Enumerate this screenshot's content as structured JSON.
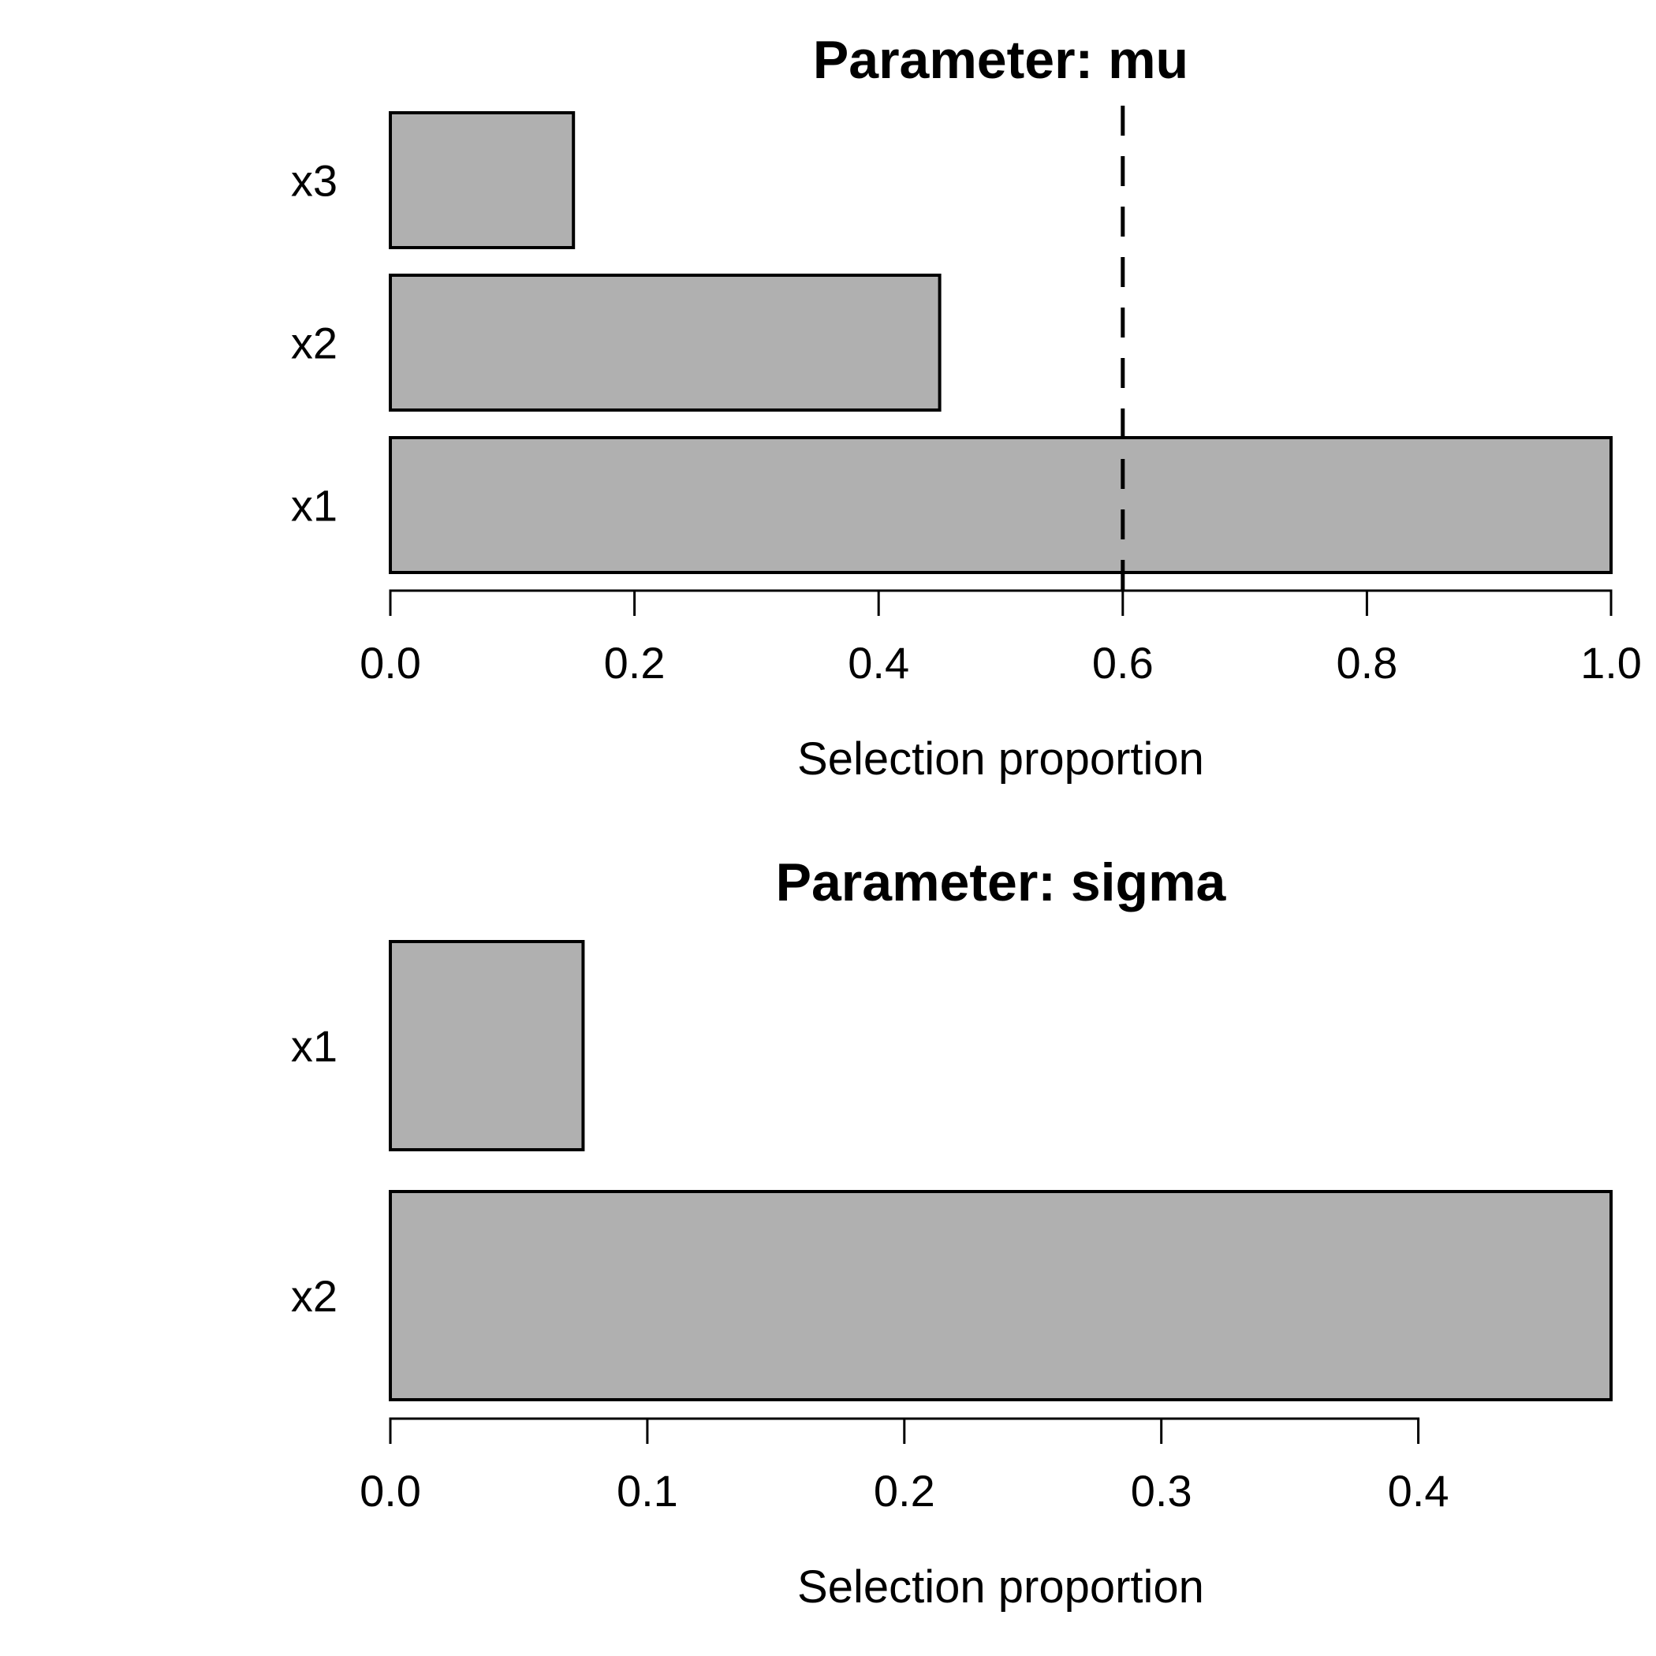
{
  "page": {
    "background": "#ffffff"
  },
  "chart_data": [
    {
      "type": "bar",
      "orientation": "horizontal",
      "title": "Parameter: mu",
      "xlabel": "Selection proportion",
      "bars": [
        {
          "label": "x3",
          "value": 0.15
        },
        {
          "label": "x2",
          "value": 0.45
        },
        {
          "label": "x1",
          "value": 1.0
        }
      ],
      "xlim": [
        0,
        1.0
      ],
      "xticks": [
        "0.0",
        "0.2",
        "0.4",
        "0.6",
        "0.8",
        "1.0"
      ],
      "xtick_values": [
        0,
        0.2,
        0.4,
        0.6,
        0.8,
        1.0
      ],
      "threshold_line": {
        "value": 0.6,
        "style": "dashed",
        "color": "#000000"
      },
      "bar_fill": "#b0b0b0",
      "bar_stroke": "#000000",
      "grid": false,
      "legend": null
    },
    {
      "type": "bar",
      "orientation": "horizontal",
      "title": "Parameter: sigma",
      "xlabel": "Selection proportion",
      "bars": [
        {
          "label": "x1",
          "value": 0.075
        },
        {
          "label": "x2",
          "value": 0.475
        }
      ],
      "xlim": [
        0,
        0.475
      ],
      "xticks": [
        "0.0",
        "0.1",
        "0.2",
        "0.3",
        "0.4"
      ],
      "xtick_values": [
        0,
        0.1,
        0.2,
        0.3,
        0.4
      ],
      "threshold_line": null,
      "bar_fill": "#b0b0b0",
      "bar_stroke": "#000000",
      "grid": false,
      "legend": null
    }
  ]
}
